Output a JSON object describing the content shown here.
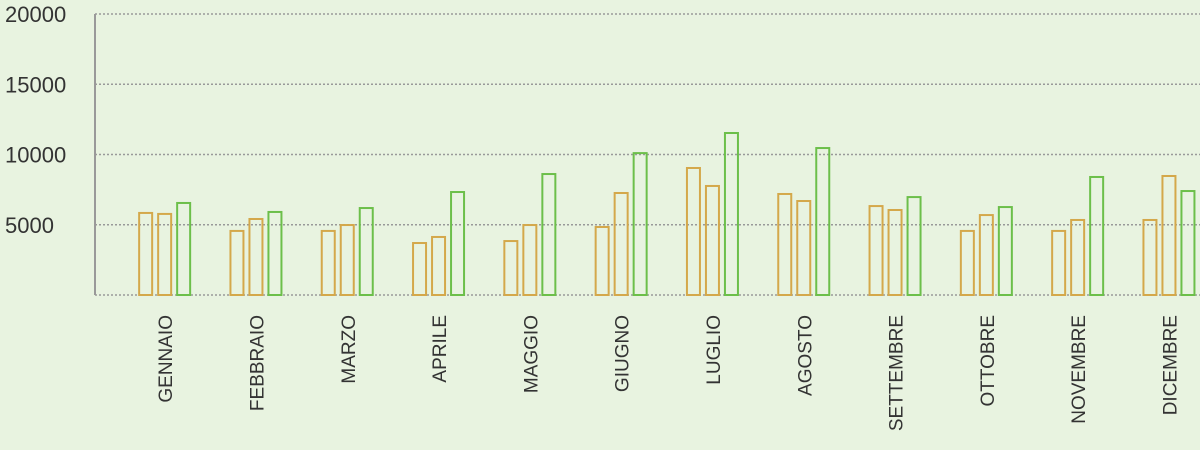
{
  "chart_data": {
    "type": "bar",
    "categories": [
      "GENNAIO",
      "FEBBRAIO",
      "MARZO",
      "APRILE",
      "MAGGIO",
      "GIUGNO",
      "LUGLIO",
      "AGOSTO",
      "SETTEMBRE",
      "OTTOBRE",
      "NOVEMBRE",
      "DICEMBRE"
    ],
    "series": [
      {
        "color": "#d4a84b",
        "values": [
          5840,
          4560,
          4560,
          3700,
          3840,
          4840,
          9040,
          7190,
          6330,
          4560,
          4560,
          5340
        ]
      },
      {
        "color": "#d4a84b",
        "values": [
          5770,
          5410,
          4980,
          4130,
          4980,
          7260,
          7760,
          6690,
          6050,
          5690,
          5340,
          8470
        ]
      },
      {
        "color": "#6cbf4a",
        "values": [
          6550,
          5910,
          6190,
          7330,
          8610,
          10100,
          11530,
          10460,
          6970,
          6260,
          8400,
          7400
        ]
      }
    ],
    "ylim": [
      0,
      20000
    ],
    "yticks": [
      5000,
      10000,
      15000,
      20000
    ],
    "grid": true
  }
}
